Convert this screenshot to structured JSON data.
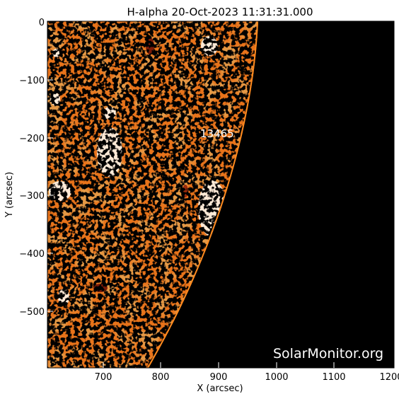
{
  "title": "H-alpha 20-Oct-2023 11:31:31.000",
  "xlabel": "X (arcsec)",
  "ylabel": "Y (arcsec)",
  "x_ticks": [
    "700",
    "800",
    "900",
    "1000",
    "1100",
    "1200"
  ],
  "y_ticks": [
    "0",
    "−100",
    "−200",
    "−300",
    "−400",
    "−500"
  ],
  "region_label": "13465",
  "watermark": "SolarMonitor.org",
  "colors": {
    "disk": "#e8731a",
    "space": "#000000",
    "plage": "#fff3e6",
    "frame": "#000000"
  }
}
